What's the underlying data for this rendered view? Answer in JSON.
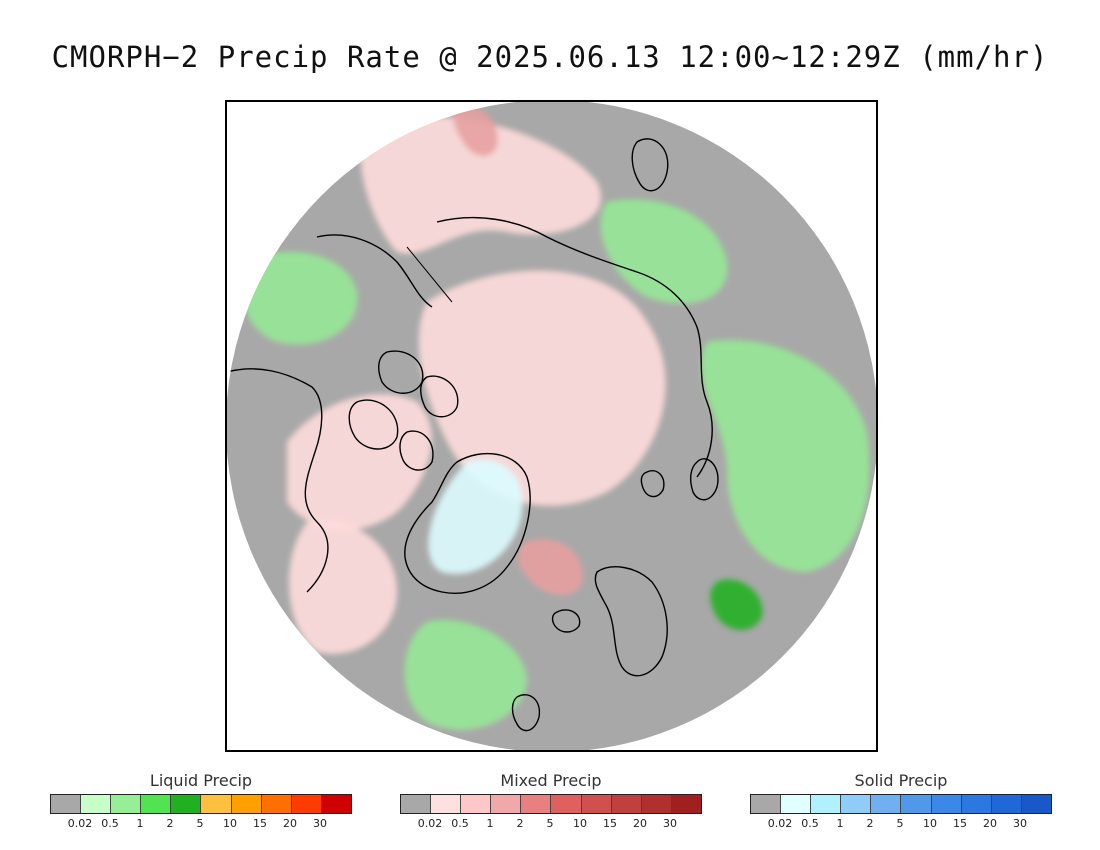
{
  "title": "CMORPH−2 Precip Rate @ 2025.06.13 12:00~12:29Z (mm/hr)",
  "map": {
    "projection": "north-polar-stereographic",
    "background_color": "#a8a8a8",
    "coastline_color": "#000000",
    "precip_regions": [
      {
        "type": "mixed",
        "level": "0.02",
        "color": "#ffdcdc",
        "area": "central-arctic-ocean"
      },
      {
        "type": "mixed",
        "level": "0.02",
        "color": "#ffdcdc",
        "area": "bering-strait-chukotka"
      },
      {
        "type": "mixed",
        "level": "0.02",
        "color": "#ffdcdc",
        "area": "canadian-archipelago"
      },
      {
        "type": "mixed",
        "level": "0.02",
        "color": "#ffdcdc",
        "area": "labrador-baffin"
      },
      {
        "type": "mixed",
        "level": "1",
        "color": "#e8a0a0",
        "area": "greenland-sea-low"
      },
      {
        "type": "mixed",
        "level": "1",
        "color": "#e8a0a0",
        "area": "kamchatka"
      },
      {
        "type": "liquid",
        "level": "0.5",
        "color": "#96e896",
        "area": "western-siberia"
      },
      {
        "type": "liquid",
        "level": "0.5",
        "color": "#96e896",
        "area": "northern-russia"
      },
      {
        "type": "liquid",
        "level": "0.5",
        "color": "#96e896",
        "area": "alaska-yukon"
      },
      {
        "type": "liquid",
        "level": "0.5",
        "color": "#96e896",
        "area": "north-atlantic"
      },
      {
        "type": "liquid",
        "level": "2",
        "color": "#22b022",
        "area": "northwest-russia-spots"
      },
      {
        "type": "solid",
        "level": "0.02",
        "color": "#dcfcff",
        "area": "greenland-ice-sheet"
      }
    ]
  },
  "legends": [
    {
      "title": "Liquid Precip",
      "colors": [
        "#a8a8a8",
        "#c8ffc8",
        "#96ee96",
        "#50e450",
        "#20b020",
        "#ffc040",
        "#ffa000",
        "#ff7000",
        "#ff3c00",
        "#d00000"
      ],
      "ticks": [
        "0.02",
        "0.5",
        "1",
        "2",
        "5",
        "10",
        "15",
        "20",
        "30"
      ]
    },
    {
      "title": "Mixed Precip",
      "colors": [
        "#a8a8a8",
        "#ffe0e0",
        "#ffc8c8",
        "#f0a8a8",
        "#e88080",
        "#e06060",
        "#d05050",
        "#c04040",
        "#b03030",
        "#a02020"
      ],
      "ticks": [
        "0.02",
        "0.5",
        "1",
        "2",
        "5",
        "10",
        "15",
        "20",
        "30"
      ]
    },
    {
      "title": "Solid Precip",
      "colors": [
        "#a8a8a8",
        "#e0ffff",
        "#b0f0ff",
        "#90ccf8",
        "#70b0f0",
        "#5098ea",
        "#3c88e8",
        "#2c78e0",
        "#2068d8",
        "#1858c8"
      ],
      "ticks": [
        "0.02",
        "0.5",
        "1",
        "2",
        "5",
        "10",
        "15",
        "20",
        "30"
      ]
    }
  ]
}
